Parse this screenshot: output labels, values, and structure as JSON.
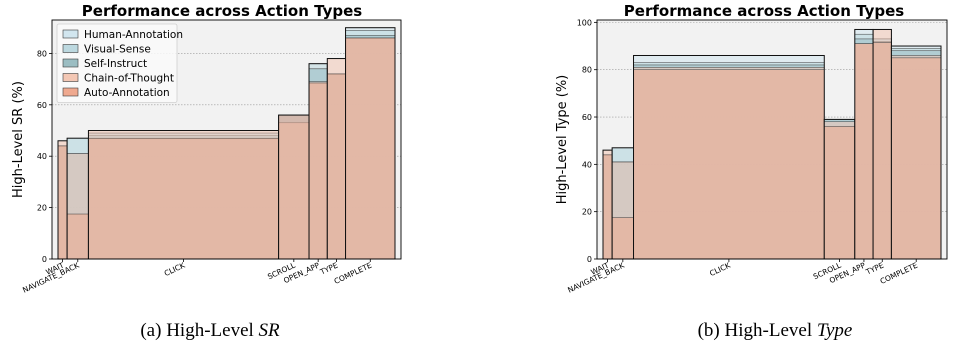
{
  "chart_data": [
    {
      "type": "bar",
      "title": "Performance across Action Types",
      "ylabel": "High-Level SR (%)",
      "ylim": [
        0,
        93
      ],
      "yticks": [
        0,
        20,
        40,
        60,
        80
      ],
      "grid": true,
      "legend_position": "top-left",
      "categories": [
        "WAIT",
        "NAVIGATE_BACK",
        "CLICK",
        "SCROLL",
        "OPEN_APP",
        "TYPE",
        "COMPLETE"
      ],
      "widths": [
        1.2,
        2.8,
        25,
        4,
        2.4,
        2.4,
        6.5
      ],
      "series": [
        {
          "name": "Human-Annotation",
          "color": "#d2e6ef",
          "values": [
            44,
            47,
            49,
            56,
            74,
            72,
            90
          ]
        },
        {
          "name": "Visual-Sense",
          "color": "#bcd8df",
          "values": [
            44,
            47,
            49,
            56,
            76,
            72,
            89
          ]
        },
        {
          "name": "Self-Instruct",
          "color": "#9bbdc2",
          "values": [
            44,
            41,
            48,
            56,
            74,
            72,
            87
          ]
        },
        {
          "name": "Chain-of-Thought",
          "color": "#f3c7b4",
          "values": [
            46,
            41,
            50,
            53,
            69,
            78,
            86
          ]
        },
        {
          "name": "Auto-Annotation",
          "color": "#efa98f",
          "values": [
            44,
            17.5,
            47,
            56,
            68.5,
            72,
            86
          ]
        }
      ],
      "caption_prefix": "(a) High-Level ",
      "caption_metric": "SR"
    },
    {
      "type": "bar",
      "title": "Performance across Action Types",
      "ylabel": "High-Level Type (%)",
      "ylim": [
        0,
        101
      ],
      "yticks": [
        0,
        20,
        40,
        60,
        80,
        100
      ],
      "grid": true,
      "categories": [
        "WAIT",
        "NAVIGATE_BACK",
        "CLICK",
        "SCROLL",
        "OPEN_APP",
        "TYPE",
        "COMPLETE"
      ],
      "widths": [
        1.2,
        2.8,
        25,
        4,
        2.4,
        2.4,
        6.5
      ],
      "series": [
        {
          "name": "Human-Annotation",
          "color": "#d2e6ef",
          "values": [
            44,
            47,
            86,
            59,
            97,
            93,
            90
          ]
        },
        {
          "name": "Visual-Sense",
          "color": "#bcd8df",
          "values": [
            44,
            47,
            83,
            59,
            95,
            93,
            89
          ]
        },
        {
          "name": "Self-Instruct",
          "color": "#9bbdc2",
          "values": [
            44,
            41,
            82,
            59,
            93,
            92,
            88
          ]
        },
        {
          "name": "Chain-of-Thought",
          "color": "#f3c7b4",
          "values": [
            46,
            41,
            81,
            58,
            91,
            97,
            86
          ]
        },
        {
          "name": "Auto-Annotation",
          "color": "#efa98f",
          "values": [
            44,
            17.5,
            80,
            56,
            91,
            91.5,
            85
          ]
        }
      ],
      "caption_prefix": "(b) High-Level ",
      "caption_metric": "Type"
    }
  ]
}
